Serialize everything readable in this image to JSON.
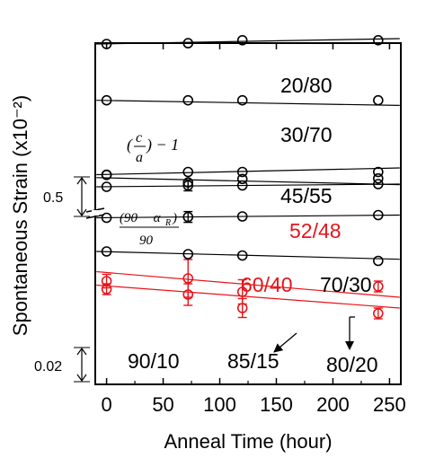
{
  "chart_data": {
    "type": "scatter",
    "title": "",
    "xlabel": "Anneal Time (hour)",
    "ylabel": "Spontaneous Strain (x10⁻²)",
    "xlim": [
      -10,
      260
    ],
    "x_ticks": [
      0,
      50,
      100,
      150,
      200,
      250
    ],
    "x_tick_labels": [
      "0",
      "50",
      "100",
      "150",
      "200",
      "250"
    ],
    "y_scale_markers": [
      {
        "label": "0.5"
      },
      {
        "label": "0.02"
      }
    ],
    "formula_tetragonal": "(c/a) - 1",
    "formula_rhombohedral": "(90 - αR) / 90",
    "colors": {
      "black": "#000000",
      "red": "#e8141b"
    },
    "series": [
      {
        "name": "20/80",
        "color": "#000000",
        "x": [
          0,
          72,
          120,
          240
        ],
        "y": [
          0.3,
          0.27,
          0.16,
          0.16
        ],
        "fit": [
          0.3,
          0.1
        ]
      },
      {
        "name": "30/70",
        "color": "#000000",
        "x": [
          0,
          72,
          120,
          240
        ],
        "y": [
          2.39,
          2.39,
          2.39,
          2.39
        ],
        "fit": [
          2.39,
          2.58
        ]
      },
      {
        "name": "45/55",
        "color": "#000000",
        "x": [
          0,
          72,
          120,
          240
        ],
        "y": [
          5.16,
          5.44,
          5.31,
          5.29
        ],
        "fit": [
          5.26,
          5.52
        ]
      },
      {
        "name": "52/48",
        "color": "#e8141b",
        "x": [
          0,
          72,
          120,
          240
        ],
        "y": [
          9.4,
          9.6,
          10.1,
          10.3
        ],
        "error": [
          0.2,
          0.4,
          0.35,
          0.2
        ],
        "fit": [
          9.25,
          10.1
        ]
      },
      {
        "name": "60/40",
        "color": "#e8141b",
        "x": [
          0,
          72,
          120,
          240
        ],
        "y": [
          9.1,
          9.0,
          9.5,
          9.3
        ],
        "error": [
          0.25,
          0.7,
          0.45,
          0.2
        ],
        "fit": [
          8.75,
          9.7
        ]
      },
      {
        "name": "70/30",
        "color": "#000000",
        "x": [
          0,
          72,
          120,
          240
        ],
        "y": [
          8.0,
          8.1,
          8.15,
          8.35
        ],
        "fit": [
          8.0,
          8.29
        ]
      },
      {
        "name": "80/20",
        "color": "#000000",
        "x": [
          0,
          72,
          120,
          240
        ],
        "y": [
          6.75,
          6.72,
          6.7,
          6.65
        ],
        "error": [
          0,
          0.2,
          0,
          0
        ],
        "fit": [
          6.75,
          6.65
        ]
      },
      {
        "name": "85/15",
        "color": "#000000",
        "x": [
          0,
          72,
          120,
          240
        ],
        "y": [
          5.6,
          5.55,
          5.55,
          5.5
        ],
        "error": [
          0,
          0.2,
          0,
          0
        ],
        "fit": [
          5.6,
          5.5
        ]
      },
      {
        "name": "90/10",
        "color": "#000000",
        "x": [
          0,
          72,
          120,
          240
        ],
        "y": [
          5.15,
          5.05,
          5.05,
          5.05
        ],
        "fit": [
          5.15,
          4.9
        ]
      }
    ]
  }
}
